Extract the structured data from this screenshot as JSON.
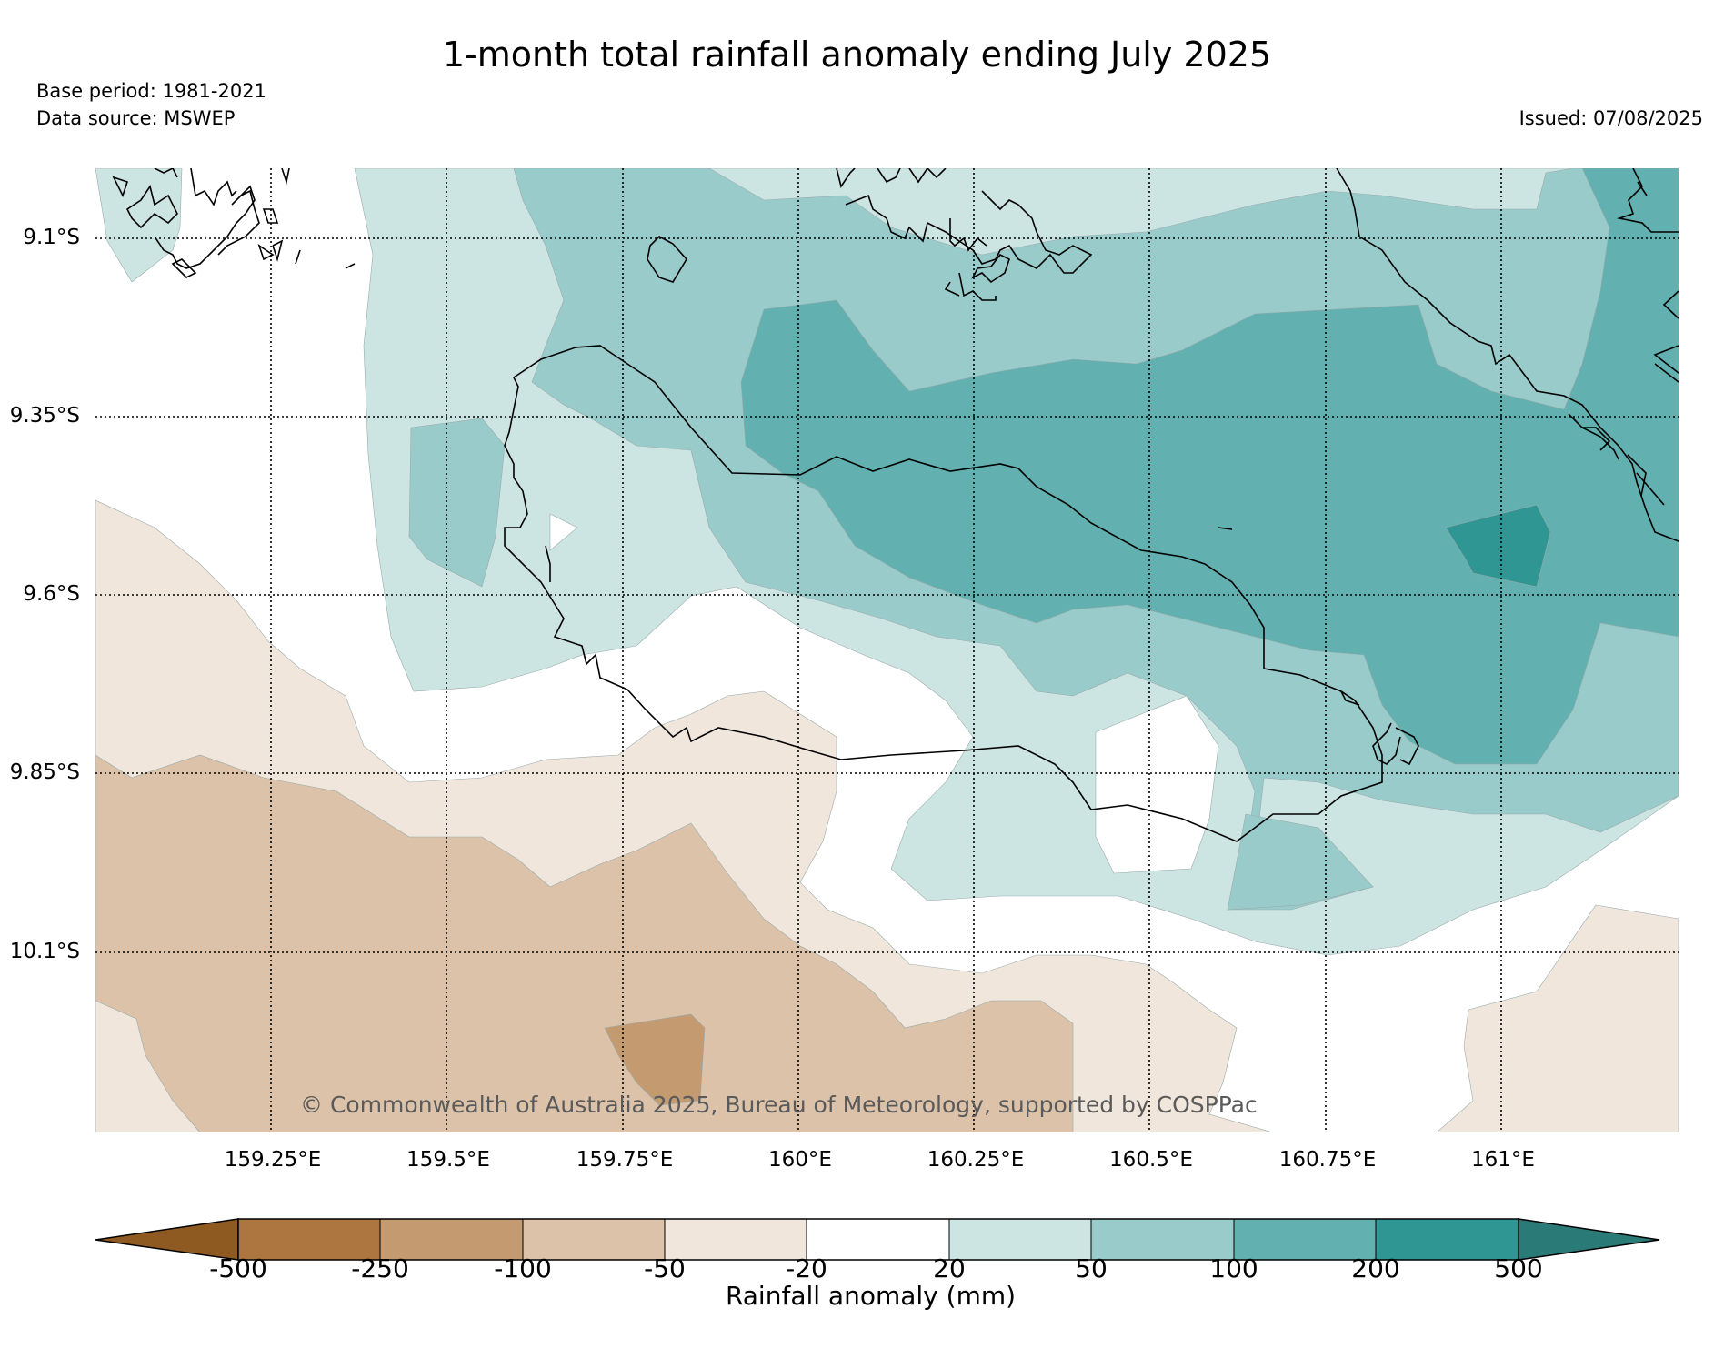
{
  "title": "1-month total rainfall anomaly ending July 2025",
  "base_period": "Base period: 1981-2021",
  "data_source": "Data source: MSWEP",
  "issued": "Issued: 07/08/2025",
  "copyright": "© Commonwealth of Australia 2025, Bureau of Meteorology, supported by COSPPac",
  "lat_labels": [
    "9.1°S",
    "9.35°S",
    "9.6°S",
    "9.85°S",
    "10.1°S"
  ],
  "lon_labels": [
    "159.25°E",
    "159.5°E",
    "159.75°E",
    "160°E",
    "160.25°E",
    "160.5°E",
    "160.75°E",
    "161°E"
  ],
  "colorbar": {
    "title": "Rainfall anomaly (mm)",
    "tick_labels": [
      "-500",
      "-250",
      "-100",
      "-50",
      "-20",
      "20",
      "50",
      "100",
      "200",
      "500"
    ],
    "colors": [
      "#8f5a22",
      "#ad7540",
      "#c49a71",
      "#dbc2a9",
      "#f0e6dc",
      "#ffffff",
      "#cce5e3",
      "#99cbcb",
      "#62b0b0",
      "#2f9693",
      "#2a7a77"
    ]
  },
  "colors": {
    "dry_light": "#f0e6dc",
    "dry_medium": "#dbc2a9",
    "dry_strong": "#c49a71",
    "wet_light": "#cce5e3",
    "wet_medium": "#99cbcb",
    "wet_strong": "#62b0b0",
    "wet_very_strong": "#2f9693"
  }
}
